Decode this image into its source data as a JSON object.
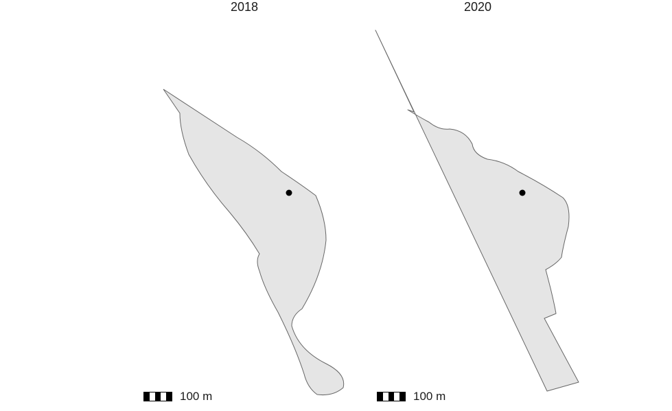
{
  "panels": [
    {
      "title": "2018",
      "scalebar_label": "100 m"
    },
    {
      "title": "2020",
      "scalebar_label": "100 m"
    }
  ],
  "colors": {
    "polygon_fill": "#e5e5e5",
    "polygon_stroke": "#666666",
    "point": "#000000",
    "background": "#ffffff"
  }
}
